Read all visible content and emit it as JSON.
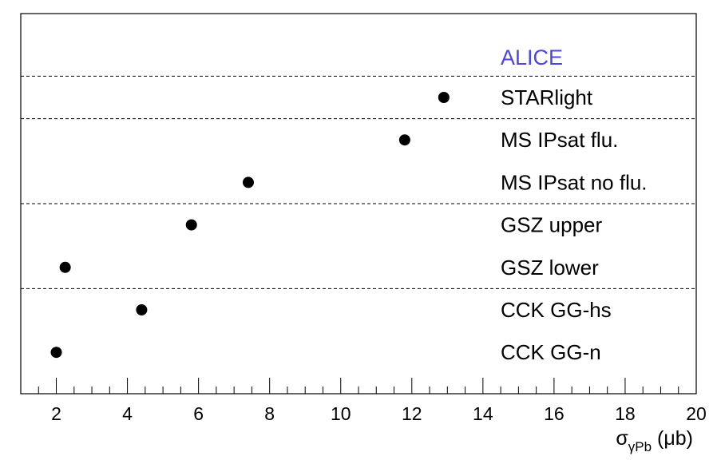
{
  "chart_data": {
    "type": "scatter",
    "title": "",
    "xlabel": "σ",
    "xlabel_sub": "γPb",
    "xlabel_unit": " (μb)",
    "xlim": [
      1,
      20
    ],
    "x_ticks": [
      "2",
      "4",
      "6",
      "8",
      "10",
      "12",
      "14",
      "16",
      "18",
      "20"
    ],
    "x_tick_values": [
      2,
      4,
      6,
      8,
      10,
      12,
      14,
      16,
      18,
      20
    ],
    "experiment_label": "ALICE",
    "experiment_color": "#4b46e6",
    "marker_color": "#000000",
    "grid": false,
    "groups": [
      {
        "points": [
          {
            "label": "STARlight",
            "x": 12.9
          }
        ]
      },
      {
        "points": [
          {
            "label": "MS IPsat flu.",
            "x": 11.8
          },
          {
            "label": "MS IPsat no flu.",
            "x": 7.4
          }
        ]
      },
      {
        "points": [
          {
            "label": "GSZ upper",
            "x": 5.8
          },
          {
            "label": "GSZ lower",
            "x": 2.25
          }
        ]
      },
      {
        "points": [
          {
            "label": "CCK GG-hs",
            "x": 4.4
          },
          {
            "label": "CCK GG-n",
            "x": 2.0
          }
        ]
      }
    ]
  }
}
